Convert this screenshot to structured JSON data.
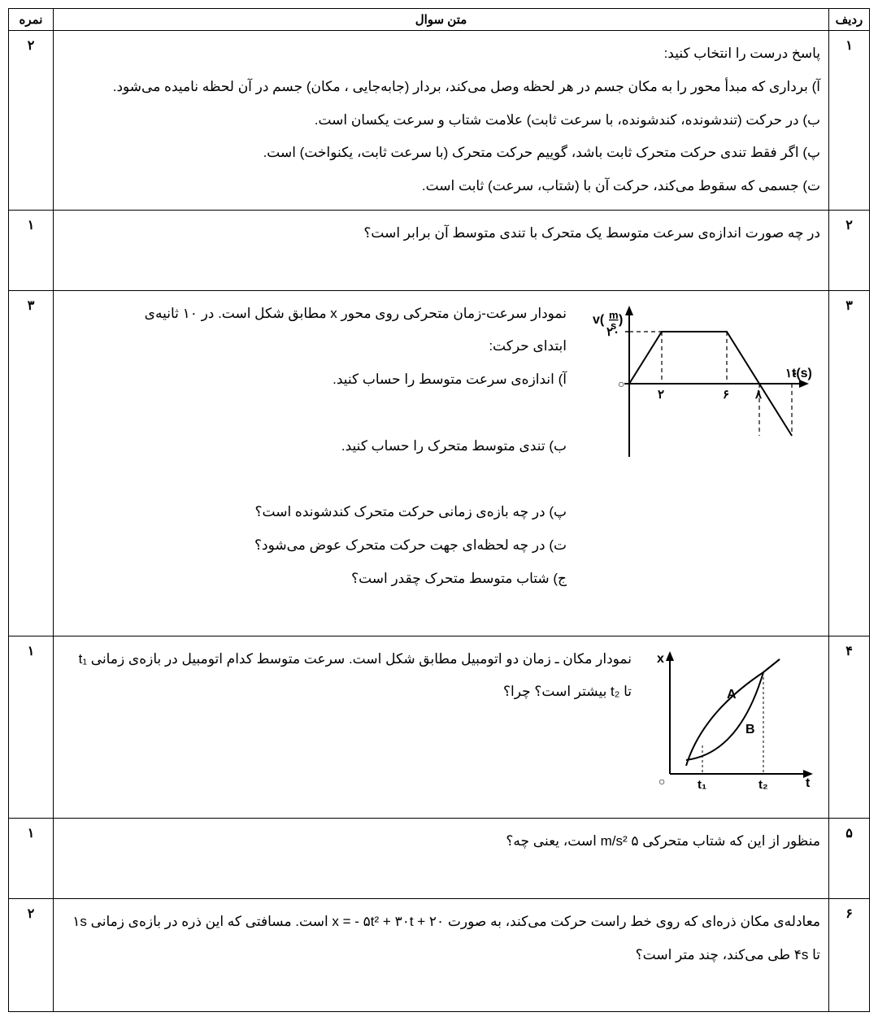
{
  "headers": {
    "row": "ردیف",
    "body": "متن سوال",
    "score": "نمره"
  },
  "persian_digits": {
    "1": "۱",
    "2": "۲",
    "3": "۳",
    "4": "۴",
    "5": "۵",
    "6": "۶"
  },
  "q1": {
    "row": "۱",
    "score": "۲",
    "intro": "پاسخ درست را انتخاب کنید:",
    "a": "آ) برداری که مبدأ محور را به مکان جسم در هر لحظه وصل می‌کند، بردار (جابه‌جایی ، مکان) جسم در آن لحظه نامیده می‌شود.",
    "b": "ب) در حرکت (تندشونده، کندشونده، با سرعت ثابت) علامت شتاب و سرعت یکسان است.",
    "p": "پ) اگر فقط تندی حرکت متحرک ثابت باشد، گوییم حرکت متحرک (با سرعت ثابت، یکنواخت) است.",
    "t": "ت) جسمی که سقوط می‌کند، حرکت آن با (شتاب، سرعت) ثابت است."
  },
  "q2": {
    "row": "۲",
    "score": "۱",
    "text": "در چه صورت اندازه‌ی سرعت متوسط یک متحرک با تندی متوسط آن برابر است؟"
  },
  "q3": {
    "row": "۳",
    "score": "۳",
    "l1": "نمودار سرعت-زمان متحرکی روی محور x مطابق شکل است. در ۱۰ ثانیه‌ی",
    "l2": "ابتدای حرکت:",
    "a": "آ) اندازه‌ی سرعت متوسط را حساب کنید.",
    "b": "ب) تندی متوسط متحرک را حساب کنید.",
    "p": "پ) در چه بازه‌ی زمانی حرکت متحرک کندشونده است؟",
    "t": "ت) در چه لحظه‌ای جهت حرکت متحرک عوض می‌شود؟",
    "j": "ج) شتاب متوسط متحرک چقدر است؟",
    "chart": {
      "type": "line",
      "y_label": "v(m/s)",
      "x_label": "t(s)",
      "y_max_tick": "۲۰",
      "x_ticks": [
        "۲",
        "۶",
        "۸",
        "۱۰"
      ],
      "points": [
        [
          0,
          0
        ],
        [
          2,
          20
        ],
        [
          6,
          20
        ],
        [
          10,
          -20
        ]
      ],
      "axis_color": "#000000",
      "line_color": "#000000",
      "dash_color": "#000000",
      "line_width": 2,
      "font_size": 14
    }
  },
  "q4": {
    "row": "۴",
    "score": "۱",
    "l1": "نمودار مکان ـ زمان دو اتومبیل مطابق شکل است. سرعت متوسط کدام اتومبیل در بازه‌ی زمانی t₁",
    "l2": "تا t₂ بیشتر است؟ چرا؟",
    "chart": {
      "type": "position-time",
      "y_label": "x",
      "x_label": "t",
      "x_ticks": [
        "t₁",
        "t₂"
      ],
      "label_a": "A",
      "label_b": "B",
      "axis_color": "#000000",
      "line_color": "#000000",
      "line_width": 2,
      "font_size": 14
    }
  },
  "q5": {
    "row": "۵",
    "score": "۱",
    "text": "منظور از این که شتاب متحرکی ۵ m/s² است، یعنی چه؟"
  },
  "q6": {
    "row": "۶",
    "score": "۲",
    "text": "معادله‌ی مکان ذره‌ای که روی خط راست حرکت می‌کند، به صورت x = - ۵t² + ۳۰t + ۲۰ است. مسافتی که این ذره در بازه‌ی زمانی ۱s تا ۴s طی می‌کند، چند متر است؟"
  }
}
